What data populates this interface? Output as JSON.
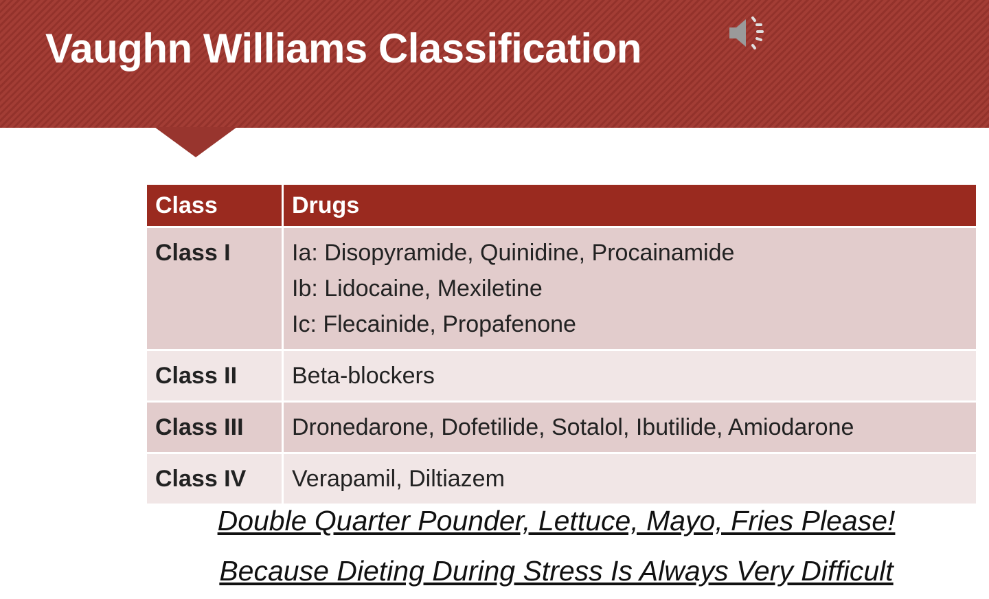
{
  "slide": {
    "title": "Vaughn Williams Classification",
    "speaker_icon": "speaker-icon",
    "colors": {
      "banner": "#9e3830",
      "table_header": "#9a2a1f",
      "row_dark": "#e2cccc",
      "row_light": "#f1e6e6"
    },
    "table": {
      "headers": [
        "Class",
        "Drugs"
      ],
      "rows": [
        {
          "class": "Class I",
          "drugs": [
            "Ia: Disopyramide, Quinidine, Procainamide",
            "Ib: Lidocaine, Mexiletine",
            "Ic: Flecainide, Propafenone"
          ]
        },
        {
          "class": "Class II",
          "drugs": [
            "Beta-blockers"
          ]
        },
        {
          "class": "Class III",
          "drugs": [
            "Dronedarone, Dofetilide, Sotalol, Ibutilide, Amiodarone"
          ]
        },
        {
          "class": "Class IV",
          "drugs": [
            "Verapamil, Diltiazem"
          ]
        }
      ]
    },
    "mnemonics": [
      "Double Quarter Pounder, Lettuce, Mayo, Fries Please!",
      "Because Dieting During Stress Is Always Very Difficult"
    ]
  }
}
